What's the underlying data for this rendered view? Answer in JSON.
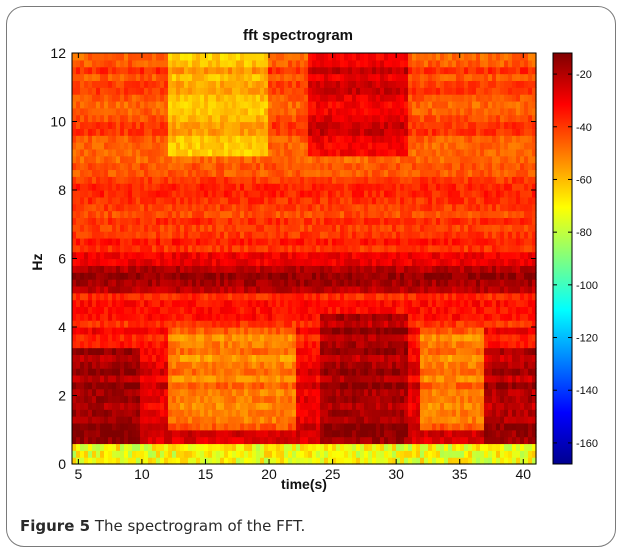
{
  "chart_data": {
    "type": "heatmap",
    "title": "fft spectrogram",
    "xlabel": "time(s)",
    "ylabel": "Hz",
    "xlim": [
      4.5,
      41
    ],
    "ylim": [
      0,
      12
    ],
    "x_ticks": [
      5,
      10,
      15,
      20,
      25,
      30,
      35,
      40
    ],
    "y_ticks": [
      0,
      2,
      4,
      6,
      8,
      10,
      12
    ],
    "colorbar": {
      "range": [
        -168,
        -12
      ],
      "ticks": [
        -20,
        -40,
        -60,
        -80,
        -100,
        -120,
        -140,
        -160
      ],
      "colormap": "jet"
    },
    "bands": [
      {
        "hz": [
          0,
          0.7
        ],
        "level": -72
      },
      {
        "hz": [
          0.7,
          3.2
        ],
        "level": -28
      },
      {
        "hz": [
          3.2,
          5.0
        ],
        "level": -34
      },
      {
        "hz": [
          5.0,
          5.4
        ],
        "level": -22
      },
      {
        "hz": [
          5.4,
          6.2
        ],
        "level": -26
      },
      {
        "hz": [
          6.2,
          8.5
        ],
        "level": -38
      },
      {
        "hz": [
          8.5,
          12
        ],
        "level": -42
      }
    ],
    "high_regions": [
      {
        "time": [
          4.5,
          10
        ],
        "hz": [
          0.7,
          3.5
        ],
        "level": -17
      },
      {
        "time": [
          24,
          31
        ],
        "hz": [
          0.7,
          4.5
        ],
        "level": -18
      },
      {
        "time": [
          37,
          41
        ],
        "hz": [
          0.7,
          3.5
        ],
        "level": -20
      },
      {
        "time": [
          4.5,
          41
        ],
        "hz": [
          5.0,
          5.6
        ],
        "level": -16
      },
      {
        "time": [
          23,
          31
        ],
        "hz": [
          9.0,
          12
        ],
        "level": -26
      }
    ],
    "low_regions": [
      {
        "time": [
          12,
          22
        ],
        "hz": [
          1.0,
          4.0
        ],
        "level": -50
      },
      {
        "time": [
          32,
          37
        ],
        "hz": [
          1.0,
          4.0
        ],
        "level": -50
      },
      {
        "time": [
          12,
          20
        ],
        "hz": [
          9.0,
          12
        ],
        "level": -58
      }
    ]
  },
  "caption": {
    "label": "Figure 5",
    "text": "The spectrogram of the FFT."
  }
}
